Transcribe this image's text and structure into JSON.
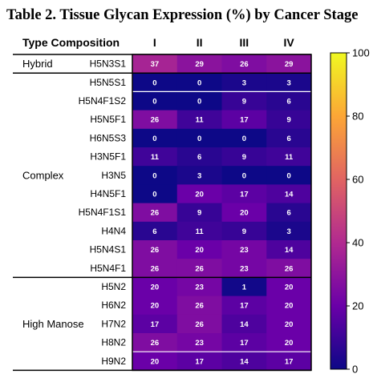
{
  "chart_data": {
    "type": "heatmap",
    "title": "Table 2. Tissue Glycan Expression (%) by Cancer Stage",
    "header_label": "Type Composition",
    "columns": [
      "I",
      "II",
      "III",
      "IV"
    ],
    "groups": [
      {
        "name": "Hybrid",
        "start": 0,
        "end": 0
      },
      {
        "name": "Complex",
        "start": 1,
        "end": 11
      },
      {
        "name": "High Manose",
        "start": 12,
        "end": 16
      }
    ],
    "rows": [
      "H5N3S1",
      "H5N5S1",
      "H5N4F1S2",
      "H5N5F1",
      "H6N5S3",
      "H3N5F1",
      "H3N5",
      "H4N5F1",
      "H5N4F1S1",
      "H4N4",
      "H5N4S1",
      "H5N4F1",
      "H5N2",
      "H6N2",
      "H7N2",
      "H8N2",
      "H9N2"
    ],
    "values": [
      [
        37,
        29,
        26,
        29
      ],
      [
        0,
        0,
        3,
        3
      ],
      [
        0,
        0,
        9,
        6
      ],
      [
        26,
        11,
        17,
        9
      ],
      [
        0,
        0,
        0,
        6
      ],
      [
        11,
        6,
        9,
        11
      ],
      [
        0,
        3,
        0,
        0
      ],
      [
        0,
        20,
        17,
        14
      ],
      [
        26,
        9,
        20,
        6
      ],
      [
        6,
        11,
        9,
        3
      ],
      [
        26,
        20,
        23,
        14
      ],
      [
        26,
        26,
        23,
        26
      ],
      [
        20,
        23,
        1,
        20
      ],
      [
        20,
        26,
        17,
        20
      ],
      [
        17,
        26,
        14,
        20
      ],
      [
        26,
        23,
        17,
        20
      ],
      [
        20,
        17,
        14,
        17
      ]
    ],
    "colorbar": {
      "min": 0,
      "max": 100,
      "ticks": [
        0,
        20,
        40,
        60,
        80,
        100
      ],
      "colors": [
        "#0d0887",
        "#6a00a8",
        "#b12a90",
        "#e16462",
        "#fca636",
        "#f0f921"
      ]
    }
  }
}
